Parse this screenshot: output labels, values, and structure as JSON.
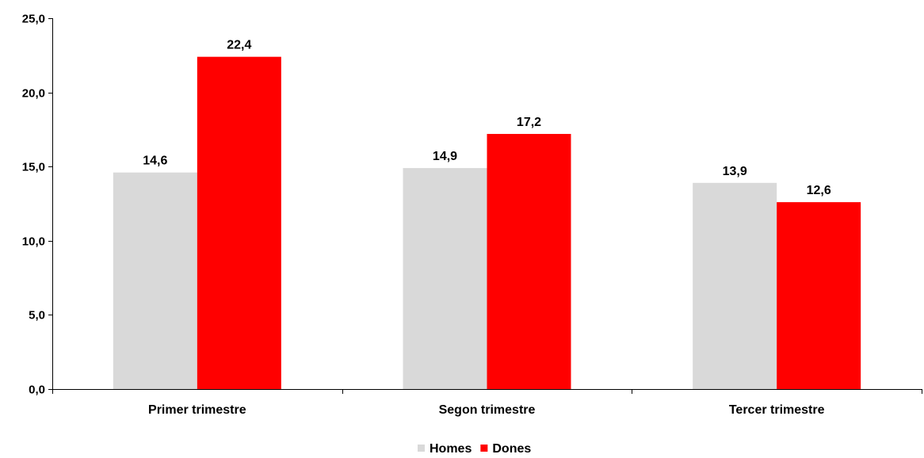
{
  "chart_data": {
    "type": "bar",
    "categories": [
      "Primer trimestre",
      "Segon trimestre",
      "Tercer trimestre"
    ],
    "series": [
      {
        "name": "Homes",
        "values": [
          14.6,
          14.9,
          13.9
        ],
        "color": "#D9D9D9"
      },
      {
        "name": "Dones",
        "values": [
          22.4,
          17.2,
          12.6
        ],
        "color": "#FF0000"
      }
    ],
    "data_labels": [
      [
        "14,6",
        "14,9",
        "13,9"
      ],
      [
        "22,4",
        "17,2",
        "12,6"
      ]
    ],
    "ylim": [
      0,
      25
    ],
    "yticks": [
      0,
      5,
      10,
      15,
      20,
      25
    ],
    "ytick_labels": [
      "0,0",
      "5,0",
      "10,0",
      "15,0",
      "20,0",
      "25,0"
    ],
    "grid": false,
    "legend_position": "bottom-center"
  }
}
